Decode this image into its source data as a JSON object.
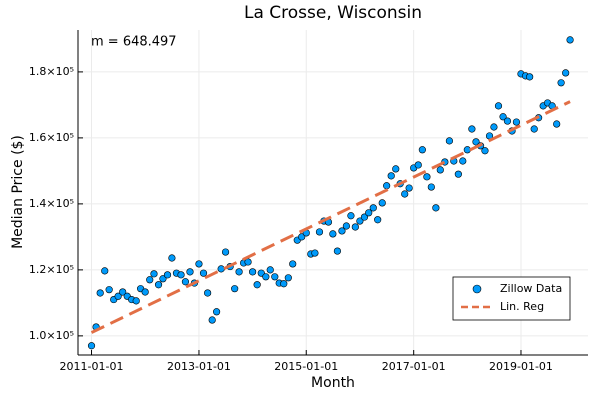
{
  "chart_data": {
    "type": "scatter",
    "title": "La Crosse, Wisconsin",
    "xlabel": "Month",
    "ylabel": "Median Price ($)",
    "annotation": "m = 648.497",
    "xlim": [
      "2010-10-01",
      "2020-04-01"
    ],
    "ylim": [
      94200,
      192700
    ],
    "xticks": [
      "2011-01-01",
      "2013-01-01",
      "2015-01-01",
      "2017-01-01",
      "2019-01-01"
    ],
    "yticks": [
      {
        "value": 100000,
        "label": "1.0×10⁵"
      },
      {
        "value": 120000,
        "label": "1.2×10⁵"
      },
      {
        "value": 140000,
        "label": "1.4×10⁵"
      },
      {
        "value": 160000,
        "label": "1.6×10⁵"
      },
      {
        "value": 180000,
        "label": "1.8×10⁵"
      }
    ],
    "grid": true,
    "legend": "bottom-right",
    "series": [
      {
        "name": "Zillow Data",
        "type": "scatter",
        "color": "#009afa",
        "x": [
          "2011-01-01",
          "2011-02-01",
          "2011-03-01",
          "2011-04-01",
          "2011-05-01",
          "2011-06-01",
          "2011-07-01",
          "2011-08-01",
          "2011-09-01",
          "2011-10-01",
          "2011-11-01",
          "2011-12-01",
          "2012-01-01",
          "2012-02-01",
          "2012-03-01",
          "2012-04-01",
          "2012-05-01",
          "2012-06-01",
          "2012-07-01",
          "2012-08-01",
          "2012-09-01",
          "2012-10-01",
          "2012-11-01",
          "2012-12-01",
          "2013-01-01",
          "2013-02-01",
          "2013-03-01",
          "2013-04-01",
          "2013-05-01",
          "2013-06-01",
          "2013-07-01",
          "2013-08-01",
          "2013-09-01",
          "2013-10-01",
          "2013-11-01",
          "2013-12-01",
          "2014-01-01",
          "2014-02-01",
          "2014-03-01",
          "2014-04-01",
          "2014-05-01",
          "2014-06-01",
          "2014-07-01",
          "2014-08-01",
          "2014-09-01",
          "2014-10-01",
          "2014-11-01",
          "2014-12-01",
          "2015-01-01",
          "2015-02-01",
          "2015-03-01",
          "2015-04-01",
          "2015-05-01",
          "2015-06-01",
          "2015-07-01",
          "2015-08-01",
          "2015-09-01",
          "2015-10-01",
          "2015-11-01",
          "2015-12-01",
          "2016-01-01",
          "2016-02-01",
          "2016-03-01",
          "2016-04-01",
          "2016-05-01",
          "2016-06-01",
          "2016-07-01",
          "2016-08-01",
          "2016-09-01",
          "2016-10-01",
          "2016-11-01",
          "2016-12-01",
          "2017-01-01",
          "2017-02-01",
          "2017-03-01",
          "2017-04-01",
          "2017-05-01",
          "2017-06-01",
          "2017-07-01",
          "2017-08-01",
          "2017-09-01",
          "2017-10-01",
          "2017-11-01",
          "2017-12-01",
          "2018-01-01",
          "2018-02-01",
          "2018-03-01",
          "2018-04-01",
          "2018-05-01",
          "2018-06-01",
          "2018-07-01",
          "2018-08-01",
          "2018-09-01",
          "2018-10-01",
          "2018-11-01",
          "2018-12-01",
          "2019-01-01",
          "2019-02-01",
          "2019-03-01",
          "2019-04-01",
          "2019-05-01",
          "2019-06-01",
          "2019-07-01",
          "2019-08-01",
          "2019-09-01",
          "2019-10-01",
          "2019-11-01",
          "2019-12-01"
        ],
        "values": [
          97000,
          102700,
          113000,
          119700,
          114000,
          111000,
          112000,
          113300,
          112000,
          111000,
          110600,
          114300,
          113300,
          117000,
          118800,
          115500,
          117300,
          118500,
          123600,
          119000,
          118500,
          116400,
          119400,
          116000,
          121800,
          119000,
          113000,
          104800,
          107300,
          120300,
          125400,
          121000,
          114300,
          119400,
          122100,
          122400,
          119400,
          115500,
          119000,
          117900,
          120000,
          117900,
          116000,
          115800,
          117600,
          121800,
          129000,
          130000,
          131200,
          124800,
          125100,
          131500,
          134800,
          134500,
          130900,
          125700,
          131800,
          133300,
          136400,
          133000,
          134800,
          136000,
          137300,
          138800,
          135200,
          140300,
          145500,
          148500,
          150600,
          146100,
          143000,
          144800,
          150900,
          151800,
          156400,
          148200,
          145100,
          138800,
          150300,
          152700,
          159100,
          153000,
          149000,
          153000,
          156400,
          162700,
          158800,
          157600,
          156100,
          160600,
          163300,
          169700,
          166400,
          165100,
          162100,
          164800,
          179400,
          178800,
          178500,
          162700,
          166100,
          169700,
          170600,
          169700,
          164200,
          176700,
          179700,
          189700
        ]
      },
      {
        "name": "Lin. Reg",
        "type": "line",
        "color": "#e26f46",
        "x": [
          "2011-01-01",
          "2019-12-01"
        ],
        "values": [
          101000,
          171000
        ]
      }
    ]
  }
}
